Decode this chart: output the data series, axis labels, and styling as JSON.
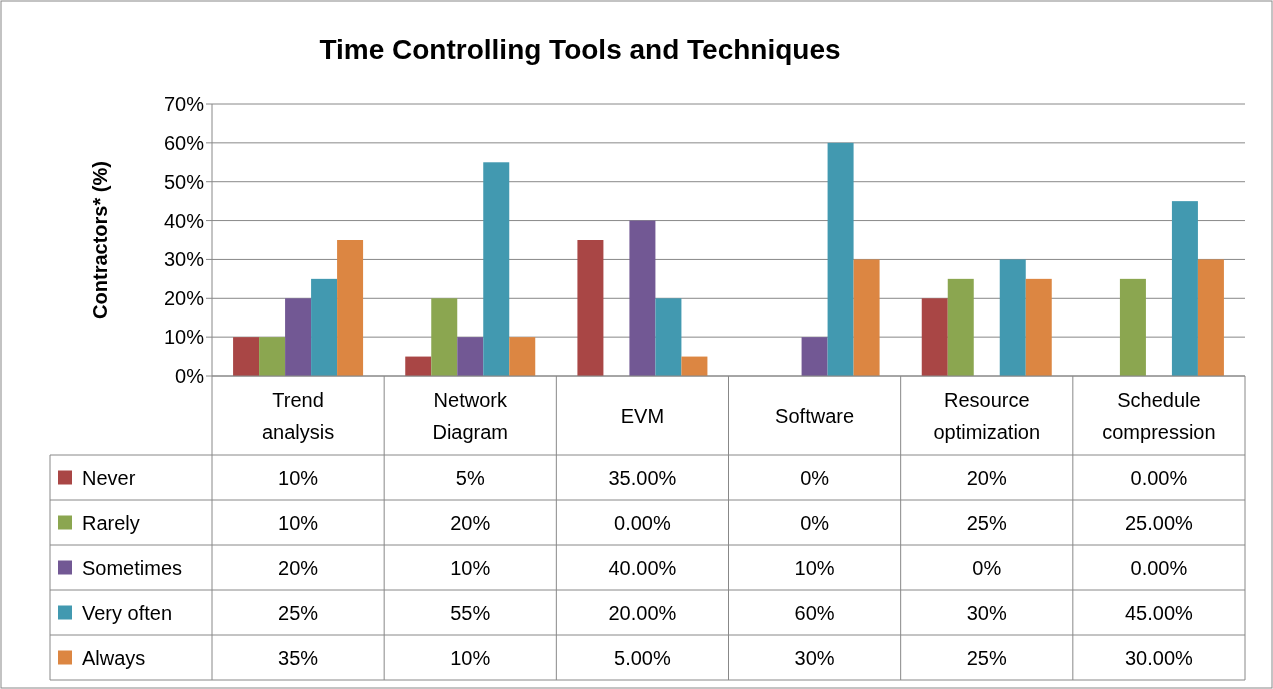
{
  "chart_data": {
    "type": "bar",
    "title": "Time Controlling Tools and Techniques",
    "ylabel": "Contractors* (%)",
    "categories": [
      "Trend analysis",
      "Network Diagram",
      "EVM",
      "Software",
      "Resource optimization",
      "Schedule compression"
    ],
    "series": [
      {
        "name": "Never",
        "color": "#a94645",
        "values": [
          10,
          5,
          35,
          0,
          20,
          0
        ],
        "value_labels": [
          "10%",
          "5%",
          "35.00%",
          "0%",
          "20%",
          "0.00%"
        ]
      },
      {
        "name": "Rarely",
        "color": "#8ba650",
        "values": [
          10,
          20,
          0,
          0,
          25,
          25
        ],
        "value_labels": [
          "10%",
          "20%",
          "0.00%",
          "0%",
          "25%",
          "25.00%"
        ]
      },
      {
        "name": "Sometimes",
        "color": "#725894",
        "values": [
          20,
          10,
          40,
          10,
          0,
          0
        ],
        "value_labels": [
          "20%",
          "10%",
          "40.00%",
          "10%",
          "0%",
          "0.00%"
        ]
      },
      {
        "name": "Very often",
        "color": "#4299b0",
        "values": [
          25,
          55,
          20,
          60,
          30,
          45
        ],
        "value_labels": [
          "25%",
          "55%",
          "20.00%",
          "60%",
          "30%",
          "45.00%"
        ]
      },
      {
        "name": "Always",
        "color": "#dc8642",
        "values": [
          35,
          10,
          5,
          30,
          25,
          30
        ],
        "value_labels": [
          "35%",
          "10%",
          "5.00%",
          "30%",
          "25%",
          "30.00%"
        ]
      }
    ],
    "ylim": [
      0,
      70
    ],
    "yticks": [
      {
        "value": 0,
        "label": "0%"
      },
      {
        "value": 10,
        "label": "10%"
      },
      {
        "value": 20,
        "label": "20%"
      },
      {
        "value": 30,
        "label": "30%"
      },
      {
        "value": 40,
        "label": "40%"
      },
      {
        "value": 50,
        "label": "50%"
      },
      {
        "value": 60,
        "label": "60%"
      },
      {
        "value": 70,
        "label": "70%"
      }
    ],
    "grid": "y",
    "legend": "bottom left"
  }
}
